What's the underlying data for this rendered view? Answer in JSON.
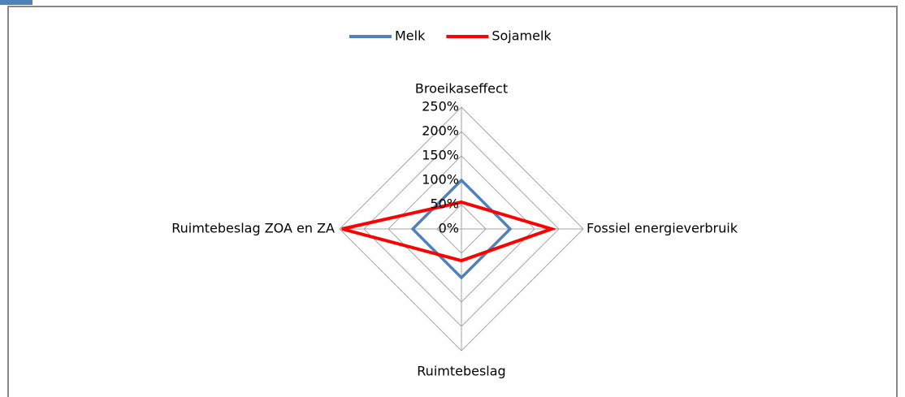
{
  "chart_data": {
    "type": "radar",
    "categories": [
      "Broeikaseffect",
      "Fossiel energieverbruik",
      "Ruimtebeslag",
      "Ruimtebeslag ZOA en ZA"
    ],
    "series": [
      {
        "name": "Melk",
        "color": "#4f81bd",
        "values": [
          100,
          100,
          100,
          100
        ]
      },
      {
        "name": "Sojamelk",
        "color": "#ff0000",
        "values": [
          55,
          185,
          65,
          245
        ]
      }
    ],
    "ylim": [
      0,
      250
    ],
    "yticks": [
      {
        "value": 0,
        "label": "0%"
      },
      {
        "value": 50,
        "label": "50%"
      },
      {
        "value": 100,
        "label": "100%"
      },
      {
        "value": 150,
        "label": "150%"
      },
      {
        "value": 200,
        "label": "200%"
      },
      {
        "value": 250,
        "label": "250%"
      }
    ],
    "grid": true,
    "legend": "top"
  }
}
